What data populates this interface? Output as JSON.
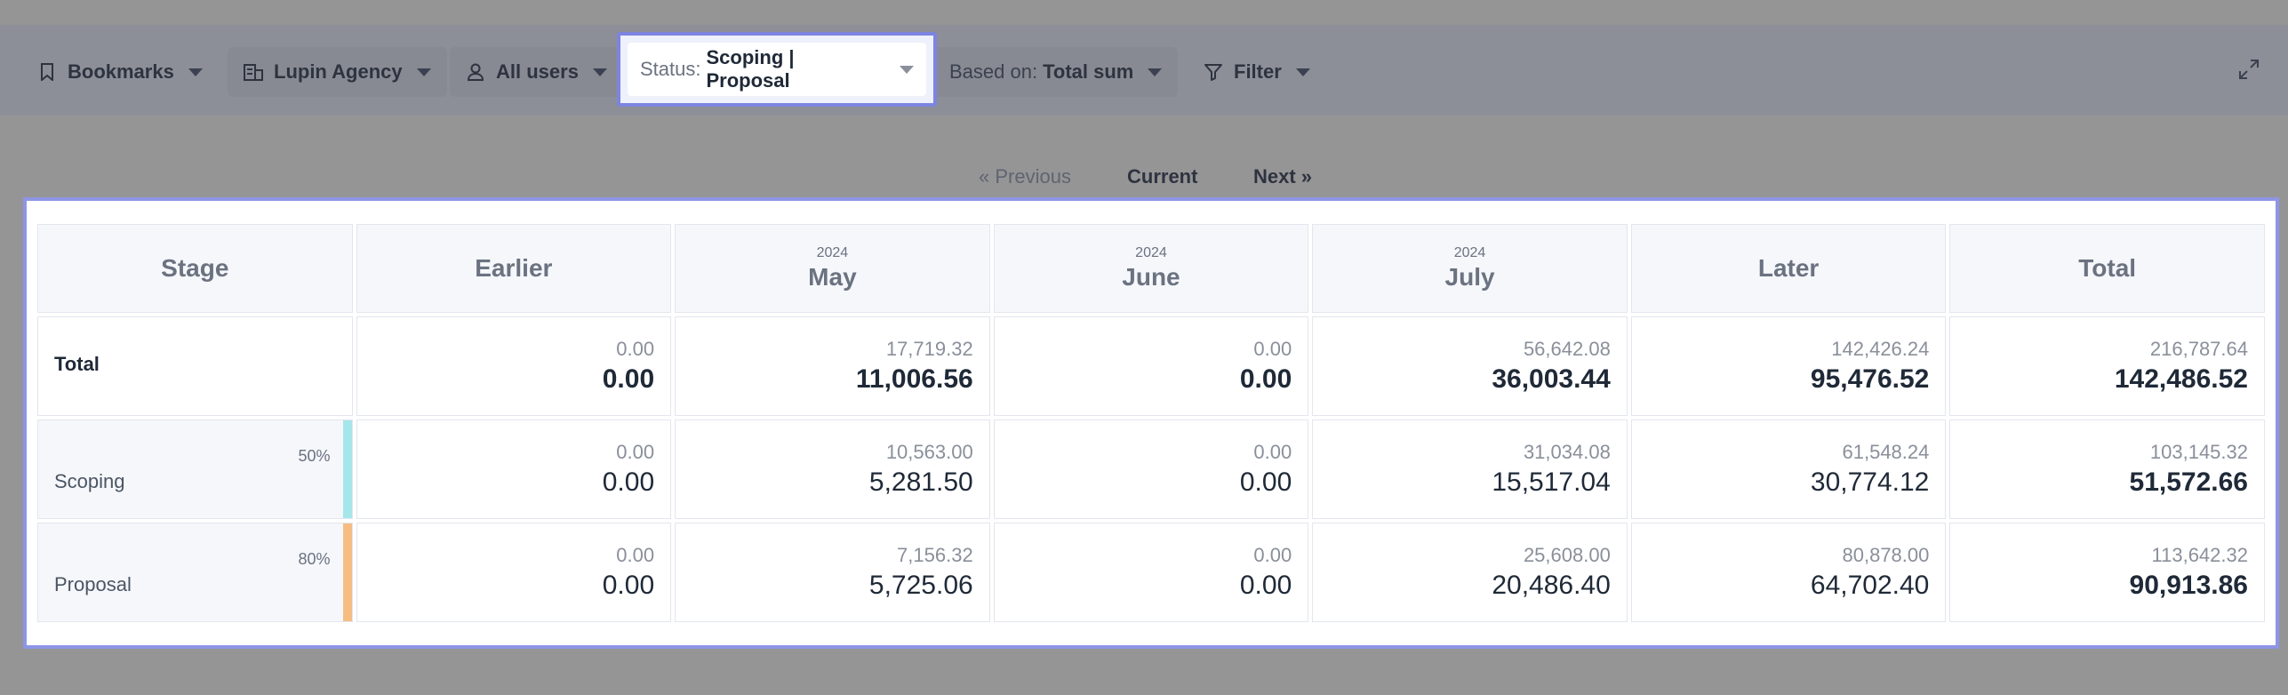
{
  "toolbar": {
    "bookmarks": "Bookmarks",
    "agency": "Lupin Agency",
    "users": "All users",
    "status_label": "Status:",
    "status_value": "Scoping | Proposal",
    "based_label": "Based on:",
    "based_value": "Total sum",
    "filter": "Filter"
  },
  "pager": {
    "previous": "« Previous",
    "current": "Current",
    "next": "Next »"
  },
  "table": {
    "headers": {
      "stage": "Stage",
      "earlier": "Earlier",
      "may_year": "2024",
      "may": "May",
      "june_year": "2024",
      "june": "June",
      "july_year": "2024",
      "july": "July",
      "later": "Later",
      "total": "Total"
    },
    "rows": [
      {
        "label": "Total",
        "pct": "",
        "cells": [
          {
            "sub": "0.00",
            "main": "0.00"
          },
          {
            "sub": "17,719.32",
            "main": "11,006.56"
          },
          {
            "sub": "0.00",
            "main": "0.00"
          },
          {
            "sub": "56,642.08",
            "main": "36,003.44"
          },
          {
            "sub": "142,426.24",
            "main": "95,476.52"
          },
          {
            "sub": "216,787.64",
            "main": "142,486.52"
          }
        ]
      },
      {
        "label": "Scoping",
        "pct": "50%",
        "color": "#a6e6ea",
        "cells": [
          {
            "sub": "0.00",
            "main": "0.00"
          },
          {
            "sub": "10,563.00",
            "main": "5,281.50"
          },
          {
            "sub": "0.00",
            "main": "0.00"
          },
          {
            "sub": "31,034.08",
            "main": "15,517.04"
          },
          {
            "sub": "61,548.24",
            "main": "30,774.12"
          },
          {
            "sub": "103,145.32",
            "main": "51,572.66"
          }
        ]
      },
      {
        "label": "Proposal",
        "pct": "80%",
        "color": "#f6bd83",
        "cells": [
          {
            "sub": "0.00",
            "main": "0.00"
          },
          {
            "sub": "7,156.32",
            "main": "5,725.06"
          },
          {
            "sub": "0.00",
            "main": "0.00"
          },
          {
            "sub": "25,608.00",
            "main": "20,486.40"
          },
          {
            "sub": "80,878.00",
            "main": "64,702.40"
          },
          {
            "sub": "113,642.32",
            "main": "90,913.86"
          }
        ]
      }
    ]
  }
}
